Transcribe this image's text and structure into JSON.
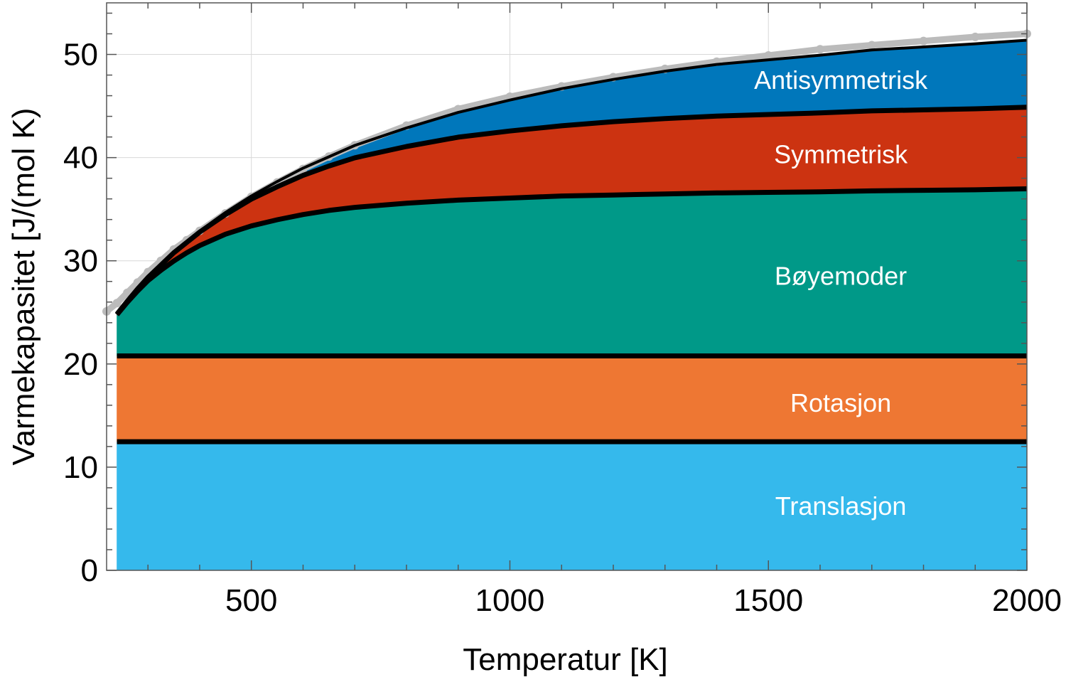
{
  "chart_data": {
    "type": "area",
    "title": "",
    "xlabel": "Temperatur [K]",
    "ylabel": "Varmekapasitet [J/(mol K)",
    "xlim": [
      220,
      2000
    ],
    "ylim": [
      0,
      55
    ],
    "xticks": [
      500,
      1000,
      1500,
      2000
    ],
    "yticks": [
      0,
      10,
      20,
      30,
      40,
      50
    ],
    "x_minor_step": 100,
    "y_minor_step": 2,
    "grid": true,
    "stacked": true,
    "x": [
      240,
      260,
      280,
      300,
      325,
      350,
      375,
      400,
      450,
      500,
      550,
      600,
      650,
      700,
      800,
      900,
      1000,
      1100,
      1200,
      1300,
      1400,
      1500,
      1600,
      1700,
      1800,
      1900,
      2000
    ],
    "series": [
      {
        "name": "Translasjon",
        "color": "#35b9ec",
        "values": [
          12.47,
          12.47,
          12.47,
          12.47,
          12.47,
          12.47,
          12.47,
          12.47,
          12.47,
          12.47,
          12.47,
          12.47,
          12.47,
          12.47,
          12.47,
          12.47,
          12.47,
          12.47,
          12.47,
          12.47,
          12.47,
          12.47,
          12.47,
          12.47,
          12.47,
          12.47,
          12.47
        ]
      },
      {
        "name": "Rotasjon",
        "color": "#ee7733",
        "values": [
          8.31,
          8.31,
          8.31,
          8.31,
          8.31,
          8.31,
          8.31,
          8.31,
          8.31,
          8.31,
          8.31,
          8.31,
          8.31,
          8.31,
          8.31,
          8.31,
          8.31,
          8.31,
          8.31,
          8.31,
          8.31,
          8.31,
          8.31,
          8.31,
          8.31,
          8.31,
          8.31
        ]
      },
      {
        "name": "Bøyemoder",
        "color": "#009988",
        "values": [
          4.0,
          5.2,
          6.3,
          7.3,
          8.3,
          9.2,
          10.0,
          10.7,
          11.8,
          12.6,
          13.2,
          13.7,
          14.1,
          14.4,
          14.8,
          15.1,
          15.3,
          15.5,
          15.6,
          15.7,
          15.8,
          15.85,
          15.9,
          16.0,
          16.05,
          16.1,
          16.2
        ]
      },
      {
        "name": "Symmetrisk",
        "color": "#cc3311",
        "values": [
          0.05,
          0.1,
          0.2,
          0.3,
          0.5,
          0.8,
          1.0,
          1.3,
          1.9,
          2.6,
          3.2,
          3.8,
          4.3,
          4.8,
          5.5,
          6.1,
          6.5,
          6.8,
          7.1,
          7.3,
          7.45,
          7.55,
          7.65,
          7.75,
          7.8,
          7.85,
          7.9
        ]
      },
      {
        "name": "Antisymmetrisk",
        "color": "#0077bb",
        "values": [
          0.0,
          0.0,
          0.0,
          0.01,
          0.02,
          0.04,
          0.06,
          0.1,
          0.2,
          0.3,
          0.5,
          0.7,
          0.9,
          1.2,
          1.8,
          2.4,
          3.0,
          3.6,
          4.1,
          4.6,
          5.0,
          5.3,
          5.6,
          5.9,
          6.1,
          6.3,
          6.5
        ]
      }
    ],
    "measured": {
      "name": "",
      "color": "#bbbbbb",
      "x": [
        220,
        240,
        260,
        280,
        300,
        325,
        350,
        375,
        400,
        450,
        500,
        550,
        600,
        650,
        700,
        800,
        900,
        1000,
        1100,
        1200,
        1300,
        1400,
        1500,
        1600,
        1700,
        1800,
        1900,
        2000
      ],
      "values": [
        25.1,
        25.9,
        26.9,
        27.9,
        28.9,
        30.0,
        31.1,
        32.0,
        32.9,
        34.6,
        36.2,
        37.6,
        38.9,
        40.1,
        41.2,
        43.1,
        44.7,
        45.9,
        46.9,
        47.8,
        48.6,
        49.3,
        49.9,
        50.5,
        50.9,
        51.3,
        51.7,
        52.0
      ]
    },
    "annotations": [
      {
        "text": "Antisymmetrisk",
        "x": 1640,
        "y": 47.5
      },
      {
        "text": "Symmetrisk",
        "x": 1640,
        "y": 40.3
      },
      {
        "text": "Bøyemoder",
        "x": 1640,
        "y": 28.5
      },
      {
        "text": "Rotasjon",
        "x": 1640,
        "y": 16.2
      },
      {
        "text": "Translasjon",
        "x": 1640,
        "y": 6.2
      }
    ]
  }
}
